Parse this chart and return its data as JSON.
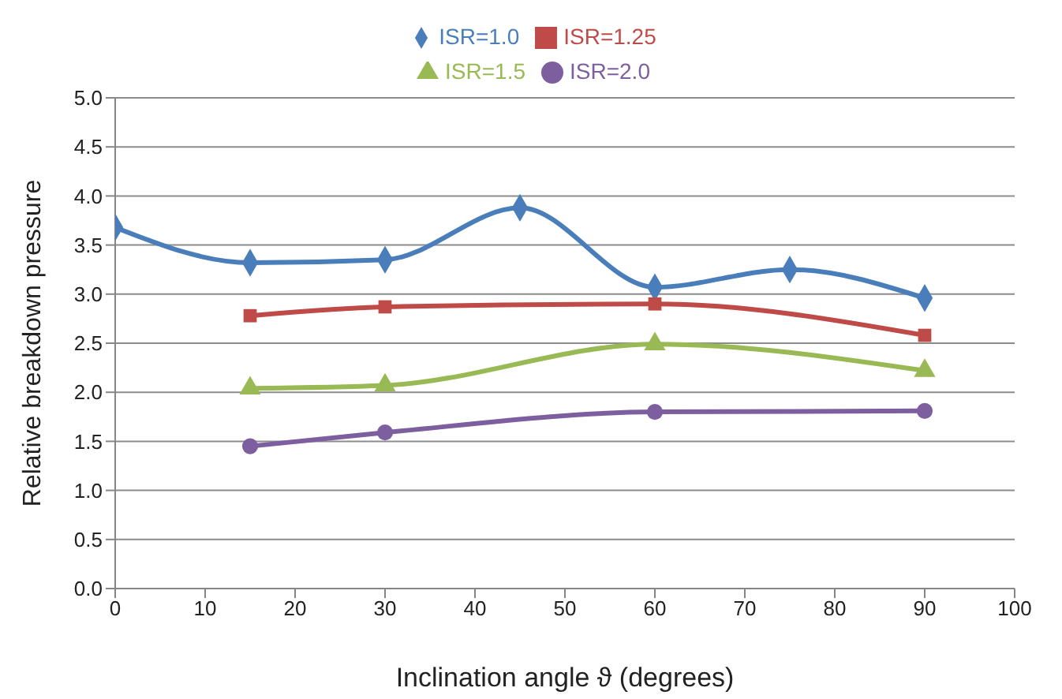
{
  "chart_data": {
    "type": "line",
    "xlabel": "Inclination angle ϑ (degrees)",
    "ylabel": "Relative breakdown pressure",
    "xlim": [
      0,
      100
    ],
    "xticks": [
      0,
      10,
      20,
      30,
      40,
      50,
      60,
      70,
      80,
      90,
      100
    ],
    "ylim": [
      0,
      5
    ],
    "yticks": [
      {
        "value": 0,
        "label": "0.0"
      },
      {
        "value": 0.5,
        "label": "0.5"
      },
      {
        "value": 1,
        "label": "1.0"
      },
      {
        "value": 1.5,
        "label": "1.5"
      },
      {
        "value": 2,
        "label": "2.0"
      },
      {
        "value": 2.5,
        "label": "2.5"
      },
      {
        "value": 3,
        "label": "3.0"
      },
      {
        "value": 3.5,
        "label": "3.5"
      },
      {
        "value": 4,
        "label": "4.0"
      },
      {
        "value": 4.5,
        "label": "4.5"
      },
      {
        "value": 5,
        "label": "5.0"
      }
    ],
    "grid": "y",
    "legend": "top",
    "series": [
      {
        "name": "ISR=1.0",
        "color": "#4a7ebb",
        "marker": "diamond",
        "x": [
          0,
          15,
          30,
          45,
          60,
          75,
          90
        ],
        "values": [
          3.68,
          3.32,
          3.35,
          3.88,
          3.07,
          3.25,
          2.96
        ]
      },
      {
        "name": "ISR=1.25",
        "color": "#be4b48",
        "marker": "square",
        "x": [
          15,
          30,
          60,
          90
        ],
        "values": [
          2.78,
          2.87,
          2.9,
          2.58
        ]
      },
      {
        "name": "ISR=1.5",
        "color": "#98b954",
        "marker": "triangle",
        "x": [
          15,
          30,
          60,
          90
        ],
        "values": [
          2.04,
          2.07,
          2.49,
          2.22
        ]
      },
      {
        "name": "ISR=2.0",
        "color": "#7d5fa0",
        "marker": "circle",
        "x": [
          15,
          30,
          60,
          90
        ],
        "values": [
          1.45,
          1.59,
          1.8,
          1.81
        ]
      }
    ]
  }
}
